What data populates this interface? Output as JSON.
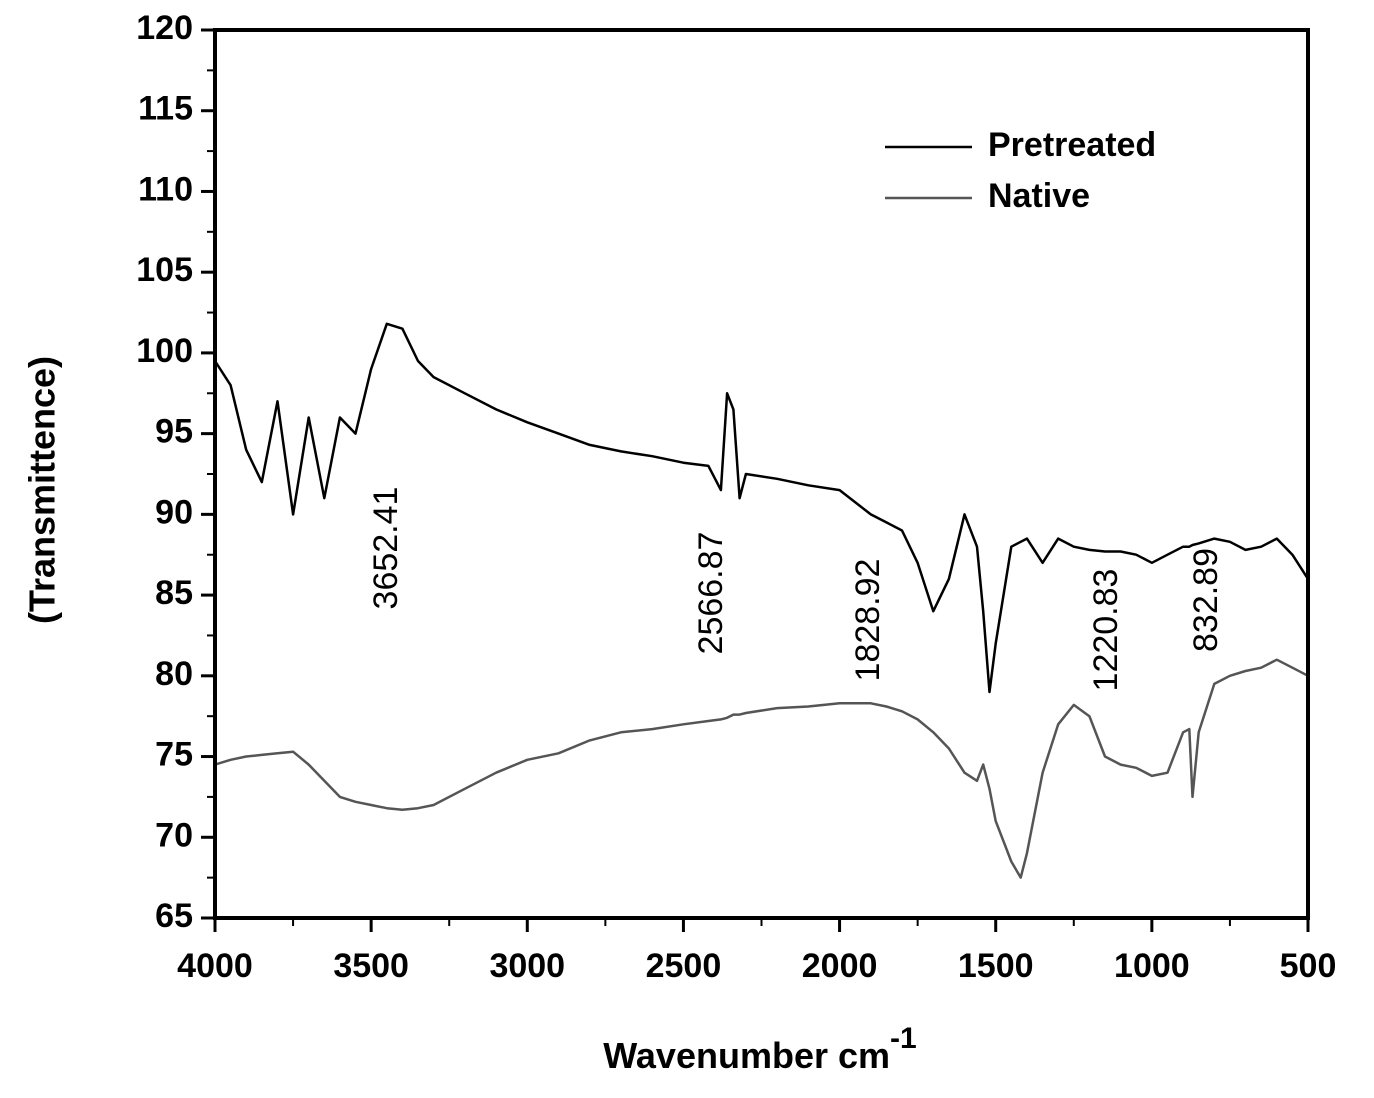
{
  "chart_data": {
    "type": "line",
    "x_label": "Wavenumber cm",
    "x_label_superscript": "-1",
    "y_label": "(Transmittence)",
    "xlim": [
      4000,
      500
    ],
    "ylim": [
      65,
      120
    ],
    "xticks": [
      4000,
      3500,
      3000,
      2500,
      2000,
      1500,
      1000,
      500
    ],
    "yticks": [
      65,
      70,
      75,
      80,
      85,
      90,
      95,
      100,
      105,
      110,
      115,
      120
    ],
    "legend": "upper right",
    "annotations": [
      "3652.41",
      "2566.87",
      "1828.92",
      "1220.83",
      "832.89"
    ],
    "x": [
      4000,
      3950,
      3900,
      3850,
      3800,
      3750,
      3700,
      3650,
      3600,
      3550,
      3500,
      3450,
      3400,
      3350,
      3300,
      3200,
      3100,
      3000,
      2900,
      2800,
      2700,
      2600,
      2500,
      2420,
      2380,
      2360,
      2340,
      2320,
      2300,
      2200,
      2100,
      2000,
      1900,
      1850,
      1800,
      1750,
      1700,
      1650,
      1600,
      1560,
      1540,
      1520,
      1500,
      1450,
      1420,
      1400,
      1350,
      1300,
      1250,
      1200,
      1150,
      1100,
      1050,
      1000,
      950,
      900,
      880,
      870,
      850,
      800,
      750,
      700,
      650,
      600,
      550,
      500
    ],
    "series": [
      {
        "name": "Pretreated",
        "color": "#000000",
        "values": [
          99.5,
          98,
          94,
          92,
          97,
          90,
          96,
          91,
          96,
          95,
          99,
          101.8,
          101.5,
          99.5,
          98.5,
          97.5,
          96.5,
          95.7,
          95,
          94.3,
          93.9,
          93.6,
          93.2,
          93,
          91.5,
          97.5,
          96.5,
          91,
          92.5,
          92.2,
          91.8,
          91.5,
          90,
          89.5,
          89,
          87,
          84,
          86,
          90,
          88,
          84,
          79,
          82,
          88,
          88.3,
          88.5,
          87,
          88.5,
          88,
          87.8,
          87.7,
          87.7,
          87.5,
          87,
          87.5,
          88,
          88,
          88.1,
          88.2,
          88.5,
          88.3,
          87.8,
          88,
          88.5,
          87.5,
          86
        ]
      },
      {
        "name": "Native",
        "color": "#555555",
        "values": [
          74.5,
          74.8,
          75,
          75.1,
          75.2,
          75.3,
          74.5,
          73.5,
          72.5,
          72.2,
          72,
          71.8,
          71.7,
          71.8,
          72,
          73,
          74,
          74.8,
          75.2,
          76,
          76.5,
          76.7,
          77,
          77.2,
          77.3,
          77.4,
          77.6,
          77.6,
          77.7,
          78,
          78.1,
          78.3,
          78.3,
          78.1,
          77.8,
          77.3,
          76.5,
          75.5,
          74,
          73.5,
          74.5,
          73,
          71,
          68.5,
          67.5,
          69,
          74,
          77,
          78.2,
          77.5,
          75,
          74.5,
          74.3,
          73.8,
          74,
          76.5,
          76.7,
          72.5,
          76.5,
          79.5,
          80,
          80.3,
          80.5,
          81,
          80.5,
          80
        ]
      }
    ]
  }
}
